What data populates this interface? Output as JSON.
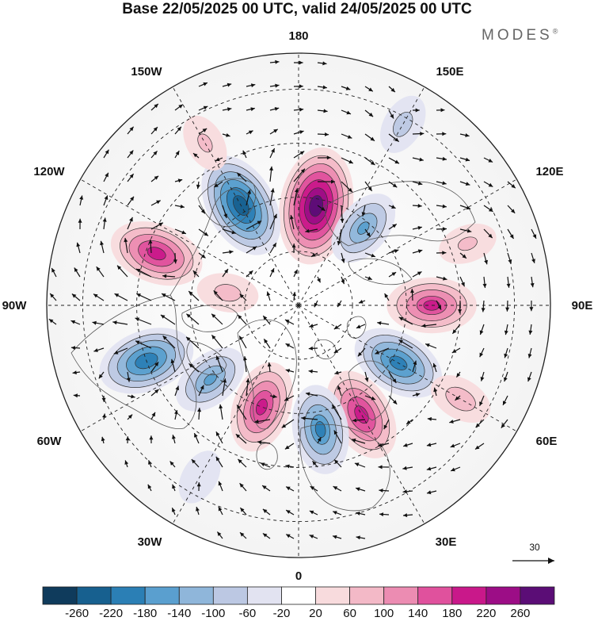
{
  "title": "Base 22/05/2025 00 UTC, valid 24/05/2025 00 UTC",
  "brand": {
    "name": "MODES",
    "mark": "®"
  },
  "longitude_labels": [
    "180",
    "150E",
    "120E",
    "90E",
    "60E",
    "30E",
    "0",
    "30W",
    "60W",
    "90W",
    "120W",
    "150W"
  ],
  "reference_vector": {
    "value": "30",
    "icon": "arrow-right-icon"
  },
  "colorbar": {
    "ticks": [
      "-260",
      "-220",
      "-180",
      "-140",
      "-100",
      "-60",
      "-20",
      "20",
      "60",
      "100",
      "140",
      "180",
      "220",
      "260"
    ],
    "colors": [
      "#0f3b5c",
      "#17608f",
      "#2b7fb5",
      "#5a9fcf",
      "#8fb6da",
      "#bcc8e3",
      "#e2e3f1",
      "#ffffff",
      "#f8dbdd",
      "#f3b9c7",
      "#ec8cb2",
      "#e0519d",
      "#c9188a",
      "#9c0d86",
      "#5b0d76"
    ]
  },
  "anomaly_centers": [
    {
      "lon": 170,
      "lat": 62,
      "value": 290,
      "sign": "positive"
    },
    {
      "lon": -150,
      "lat": 58,
      "value": -250,
      "sign": "negative"
    },
    {
      "lon": 140,
      "lat": 62,
      "value": -140,
      "sign": "negative"
    },
    {
      "lon": -110,
      "lat": 48,
      "value": 200,
      "sign": "positive"
    },
    {
      "lon": 90,
      "lat": 53,
      "value": 180,
      "sign": "positive"
    },
    {
      "lon": -70,
      "lat": 45,
      "value": -210,
      "sign": "negative"
    },
    {
      "lon": 60,
      "lat": 58,
      "value": -200,
      "sign": "negative"
    },
    {
      "lon": 30,
      "lat": 55,
      "value": 200,
      "sign": "positive"
    },
    {
      "lon": -20,
      "lat": 60,
      "value": 190,
      "sign": "positive"
    },
    {
      "lon": 10,
      "lat": 55,
      "value": -180,
      "sign": "negative"
    },
    {
      "lon": -50,
      "lat": 58,
      "value": -140,
      "sign": "negative"
    },
    {
      "lon": 60,
      "lat": 38,
      "value": 80,
      "sign": "positive"
    },
    {
      "lon": 150,
      "lat": 32,
      "value": -70,
      "sign": "negative"
    },
    {
      "lon": -150,
      "lat": 38,
      "value": 60,
      "sign": "positive"
    },
    {
      "lon": -100,
      "lat": 70,
      "value": 70,
      "sign": "positive"
    },
    {
      "lon": 110,
      "lat": 40,
      "value": 60,
      "sign": "positive"
    },
    {
      "lon": -30,
      "lat": 35,
      "value": -50,
      "sign": "negative"
    }
  ]
}
